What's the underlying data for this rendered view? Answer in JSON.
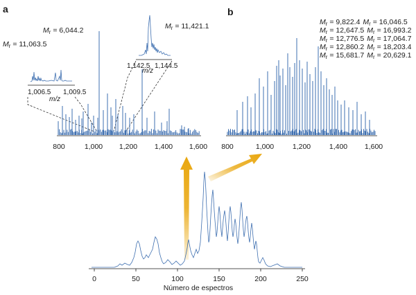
{
  "panel_a": {
    "letter": "a",
    "mr_labels": [
      {
        "prefix": "M",
        "sub": "r",
        "text": " = 11,063.5"
      },
      {
        "prefix": "M",
        "sub": "r",
        "text": " = 6,044.2"
      },
      {
        "prefix": "M",
        "sub": "r",
        "text": " = 11,421.1"
      }
    ],
    "inset_left": {
      "range_low": "1,006.5",
      "range_high": "1,009.5",
      "unit": "m/z"
    },
    "inset_right": {
      "range_low": "1,142.5",
      "range_high": "1,144.5",
      "unit": "m/z"
    },
    "ticks": [
      "800",
      "1,000",
      "1,200",
      "1,400",
      "1,600"
    ]
  },
  "panel_b": {
    "letter": "b",
    "mr_lines": [
      [
        "M",
        "r",
        " = 9,822.4",
        "M",
        "r",
        " = 16,046.5"
      ],
      [
        "M",
        "r",
        " = 12,647.5",
        "M",
        "r",
        " = 16,993.2"
      ],
      [
        "M",
        "r",
        " = 12,776.5",
        "M",
        "r",
        " = 17,064.7"
      ],
      [
        "M",
        "r",
        " = 12,860.2",
        "M",
        "r",
        " = 18,203.4"
      ],
      [
        "M",
        "r",
        " = 15,681.7",
        "M",
        "r",
        " = 20,629.1"
      ]
    ],
    "ticks": [
      "800",
      "1,000",
      "1,200",
      "1,400",
      "1,600"
    ]
  },
  "panel_bottom": {
    "ticks": [
      "0",
      "50",
      "100",
      "150",
      "200",
      "250"
    ],
    "xlabel": "Número de espectros"
  },
  "colors": {
    "spectrum": "#3e6fb0",
    "arrow": "#e9a70f",
    "text": "#1a1a1a"
  }
}
